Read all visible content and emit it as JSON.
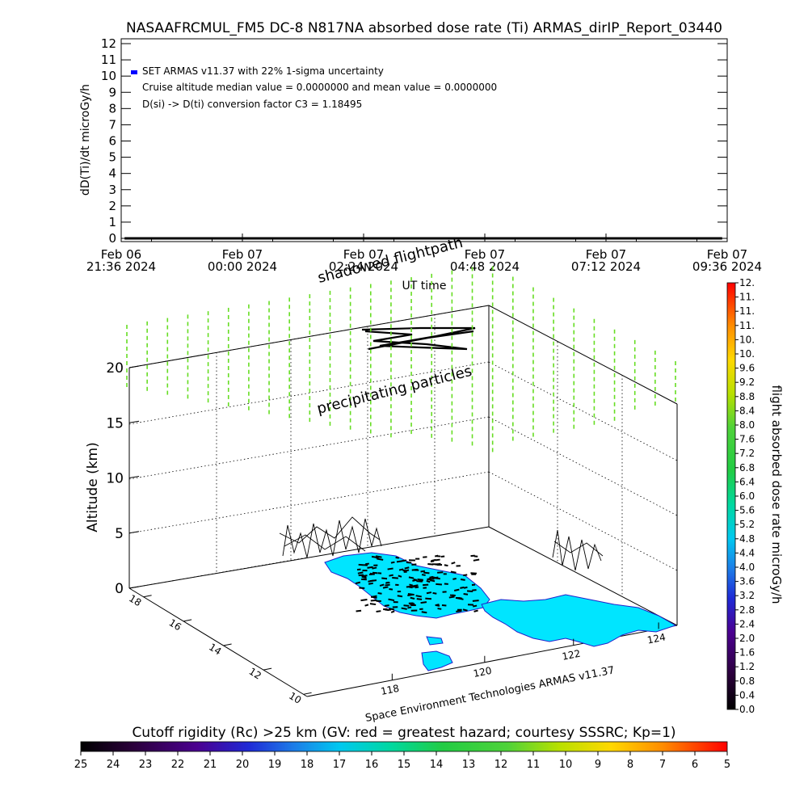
{
  "title": "NASAAFRCMUL_FM5 DC-8   N817NA absorbed dose rate (Ti) ARMAS_dirIP_Report_03440",
  "colors": {
    "series_marker": "#0000ff",
    "precip_ticks": "#66dd22",
    "land": "#00e5ff",
    "coast": "#2222cc",
    "grid": "#000000",
    "flight": "#000000"
  },
  "chart_data": [
    {
      "type": "line",
      "title": "NASAAFRCMUL_FM5 DC-8   N817NA absorbed dose rate (Ti) ARMAS_dirIP_Report_03440",
      "ylabel": "dD(Ti)/dt microGy/h",
      "xlabel": "UT time",
      "ylim": [
        0,
        12
      ],
      "yticks": [
        "0",
        "1",
        "2",
        "3",
        "4",
        "5",
        "6",
        "7",
        "8",
        "9",
        "10",
        "11",
        "12"
      ],
      "xticks": [
        {
          "line1": "Feb 06",
          "line2": "21:36 2024"
        },
        {
          "line1": "Feb 07",
          "line2": "00:00 2024"
        },
        {
          "line1": "Feb 07",
          "line2": "02:24 2024"
        },
        {
          "line1": "Feb 07",
          "line2": "04:48 2024"
        },
        {
          "line1": "Feb 07",
          "line2": "07:12 2024"
        },
        {
          "line1": "Feb 07",
          "line2": "09:36 2024"
        }
      ],
      "xlim": [
        "2024-02-06T21:36",
        "2024-02-07T09:36"
      ],
      "series": [
        {
          "x_range": [
            "2024-02-06T21:40",
            "2024-02-07T09:30"
          ],
          "value": 0.0
        }
      ],
      "legend": {
        "placement": "top-left",
        "entries": [
          "SET ARMAS v11.37 with 22% 1-sigma uncertainty",
          "Cruise altitude median value = 0.0000000 and mean value = 0.0000000",
          "D(si) -> D(ti) conversion factor C3 = 1.18495"
        ]
      }
    },
    {
      "type": "scatter",
      "zlabel": "Altitude (km)",
      "zticks": [
        "0",
        "5",
        "10",
        "15",
        "20"
      ],
      "lat_ticks": [
        "10",
        "12",
        "14",
        "16",
        "18"
      ],
      "lon_ticks": [
        "118",
        "120",
        "122",
        "124"
      ],
      "annotations": [
        "shadowed flightpath",
        "precipitating particles"
      ],
      "footer": "Space Environment Technologies ARMAS v11.37",
      "colorbar": {
        "label": "flight absorbed dose rate microGy/h",
        "ticks": [
          "0.0",
          "0.4",
          "0.8",
          "1.2",
          "1.6",
          "2.0",
          "2.4",
          "2.8",
          "3.2",
          "3.6",
          "4.0",
          "4.4",
          "4.8",
          "5.2",
          "5.6",
          "6.0",
          "6.4",
          "6.8",
          "7.2",
          "7.6",
          "8.0",
          "8.4",
          "8.8",
          "9.2",
          "9.6",
          "10.",
          "10.",
          "11.",
          "11.",
          "11.",
          "12."
        ]
      }
    },
    {
      "type": "heatmap",
      "title": "Cutoff rigidity (Rc) >25 km (GV: red = greatest hazard; courtesy SSSRC; Kp=1)",
      "ticks": [
        "25",
        "24",
        "23",
        "22",
        "21",
        "20",
        "19",
        "18",
        "17",
        "16",
        "15",
        "14",
        "13",
        "12",
        "11",
        "10",
        "9",
        "8",
        "7",
        "6",
        "5"
      ]
    }
  ]
}
